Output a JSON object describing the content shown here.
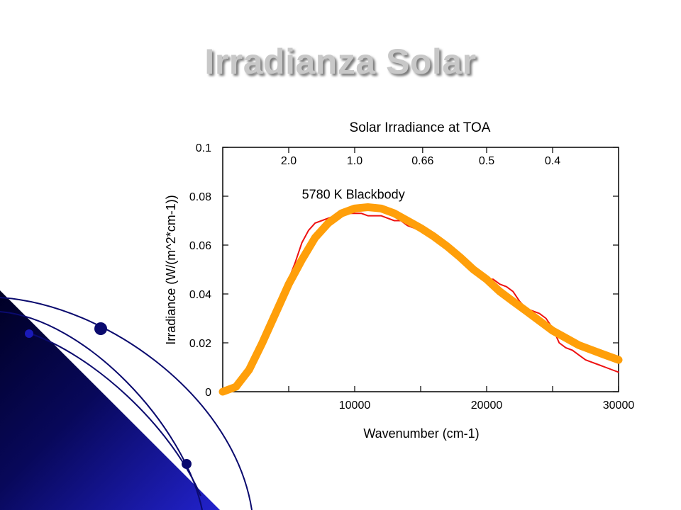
{
  "slide": {
    "title": "Irradianza Solar"
  },
  "colors": {
    "measured": "#ee1111",
    "blackbody": "#ff9f0a",
    "decor_dark": "#000030",
    "decor_blue": "#1a1ab8",
    "decor_line": "#0a0a6e"
  },
  "chart_data": {
    "type": "line",
    "title": "Solar Irradiance at TOA",
    "xlabel": "Wavenumber (cm-1)",
    "ylabel": "Irradiance (W/(m^2*cm-1))",
    "xlim": [
      0,
      30000
    ],
    "ylim": [
      0,
      0.1
    ],
    "x_ticks": [
      10000,
      20000,
      30000
    ],
    "y_ticks": [
      0,
      0.02,
      0.04,
      0.06,
      0.08,
      0.1
    ],
    "y_tick_labels": [
      "0",
      "0.02",
      "0.04",
      "0.06",
      "0.08",
      "0.1"
    ],
    "top_axis": {
      "label": "",
      "ticks": [
        {
          "label": "2.0",
          "value": 5000
        },
        {
          "label": "1.0",
          "value": 10000
        },
        {
          "label": "0.66",
          "value": 15152
        },
        {
          "label": "0.5",
          "value": 20000
        },
        {
          "label": "0.4",
          "value": 25000
        }
      ]
    },
    "annotations": [
      {
        "text": "5780 K Blackbody",
        "x": 6000,
        "y": 0.079
      }
    ],
    "grid": false,
    "series": [
      {
        "name": "",
        "color_key": "measured",
        "x": [
          0,
          1000,
          2000,
          3000,
          4000,
          5000,
          5500,
          6000,
          6500,
          7000,
          7500,
          8000,
          8500,
          9000,
          9500,
          10000,
          10500,
          11000,
          11500,
          12000,
          12500,
          13000,
          13500,
          14000,
          14500,
          15000,
          15500,
          16000,
          16500,
          17000,
          17500,
          18000,
          18500,
          19000,
          19500,
          20000,
          20500,
          21000,
          21500,
          22000,
          22500,
          23000,
          23500,
          24000,
          24500,
          25000,
          25500,
          26000,
          26500,
          27000,
          27500,
          28000,
          28500,
          29000,
          29500,
          30000
        ],
        "values": [
          0.0,
          0.003,
          0.011,
          0.022,
          0.034,
          0.046,
          0.053,
          0.061,
          0.066,
          0.069,
          0.07,
          0.071,
          0.072,
          0.072,
          0.073,
          0.073,
          0.073,
          0.072,
          0.072,
          0.072,
          0.071,
          0.07,
          0.07,
          0.068,
          0.067,
          0.066,
          0.064,
          0.063,
          0.061,
          0.059,
          0.057,
          0.054,
          0.052,
          0.05,
          0.048,
          0.046,
          0.046,
          0.044,
          0.043,
          0.041,
          0.037,
          0.034,
          0.033,
          0.032,
          0.03,
          0.026,
          0.02,
          0.018,
          0.017,
          0.015,
          0.013,
          0.012,
          0.011,
          0.01,
          0.009,
          0.008
        ]
      },
      {
        "name": "5780 K Blackbody",
        "color_key": "blackbody",
        "x": [
          0,
          1000,
          2000,
          3000,
          4000,
          5000,
          6000,
          7000,
          8000,
          9000,
          10000,
          11000,
          12000,
          13000,
          14000,
          15000,
          16000,
          17000,
          18000,
          19000,
          20000,
          21000,
          22000,
          23000,
          24000,
          25000,
          26000,
          27000,
          28000,
          29000,
          30000
        ],
        "values": [
          0.0,
          0.002,
          0.009,
          0.02,
          0.032,
          0.044,
          0.054,
          0.063,
          0.069,
          0.073,
          0.075,
          0.0755,
          0.075,
          0.073,
          0.07,
          0.067,
          0.0635,
          0.0595,
          0.055,
          0.05,
          0.046,
          0.041,
          0.037,
          0.033,
          0.029,
          0.025,
          0.022,
          0.019,
          0.017,
          0.015,
          0.013
        ]
      }
    ]
  }
}
